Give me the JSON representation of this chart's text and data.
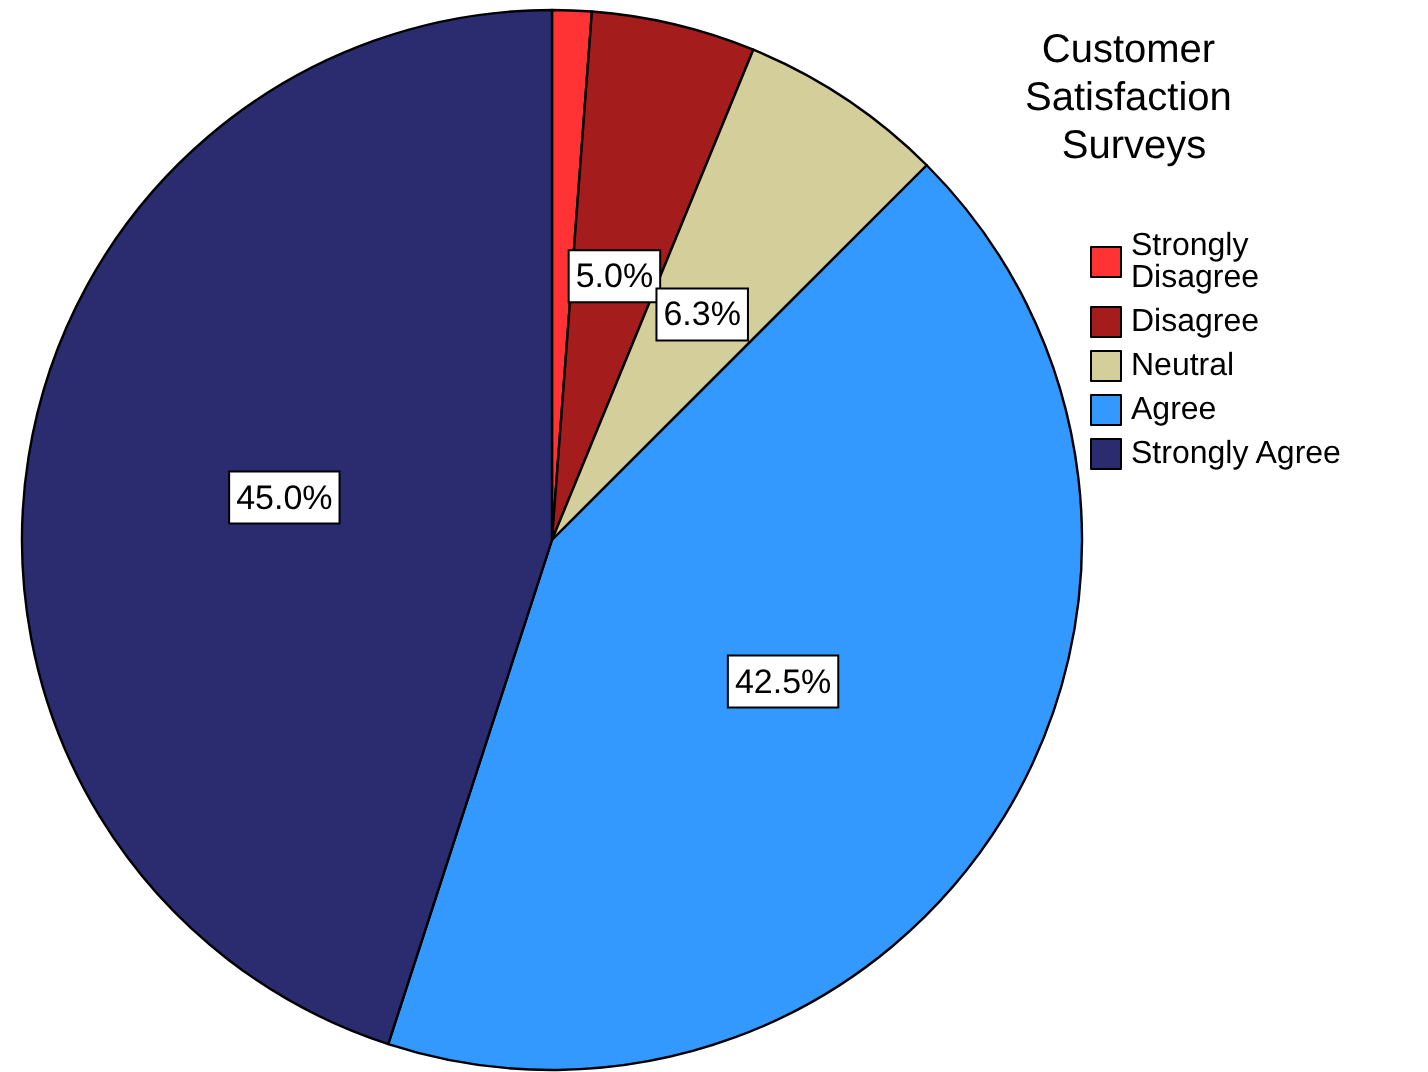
{
  "chart_data": {
    "type": "pie",
    "legend_title": "Customer Satisfaction Surveys",
    "categories": [
      "Strongly Disagree",
      "Disagree",
      "Neutral",
      "Agree",
      "Strongly Agree"
    ],
    "values": [
      1.2,
      5.0,
      6.3,
      42.5,
      45.0
    ],
    "value_labels": [
      null,
      "5.0%",
      "6.3%",
      "42.5%",
      "45.0%"
    ],
    "colors": [
      "#ff3333",
      "#a51c1c",
      "#d4cf9a",
      "#3399ff",
      "#2b2b70"
    ],
    "legend": "right"
  }
}
